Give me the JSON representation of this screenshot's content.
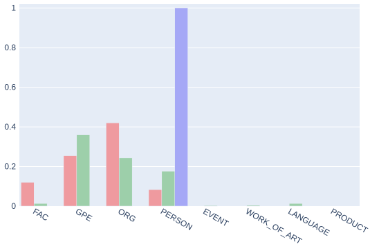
{
  "chart_data": {
    "type": "bar",
    "categories": [
      "FAC",
      "GPE",
      "ORG",
      "PERSON",
      "EVENT",
      "WORK_OF_ART",
      "LANGUAGE",
      "PRODUCT"
    ],
    "series": [
      {
        "values": [
          0.12,
          0.255,
          0.42,
          0.083,
          0,
          0,
          0,
          0
        ],
        "color": "#EF9A9F"
      },
      {
        "values": [
          0.013,
          0.36,
          0.244,
          0.176,
          0.003,
          0.004,
          0.013,
          0
        ],
        "color": "#9DCFAA"
      },
      {
        "values": [
          0,
          0,
          0,
          1.0,
          0,
          0,
          0,
          0
        ],
        "color": "#A5A8F6"
      }
    ],
    "yticks": [
      "0",
      "0.2",
      "0.4",
      "0.6",
      "0.8",
      "1"
    ],
    "ylim": [
      0,
      1.02
    ],
    "grid": true,
    "title": "",
    "xlabel": "",
    "ylabel": "",
    "background": "#E5ECF6",
    "gridcolor": "#FFFFFF"
  }
}
